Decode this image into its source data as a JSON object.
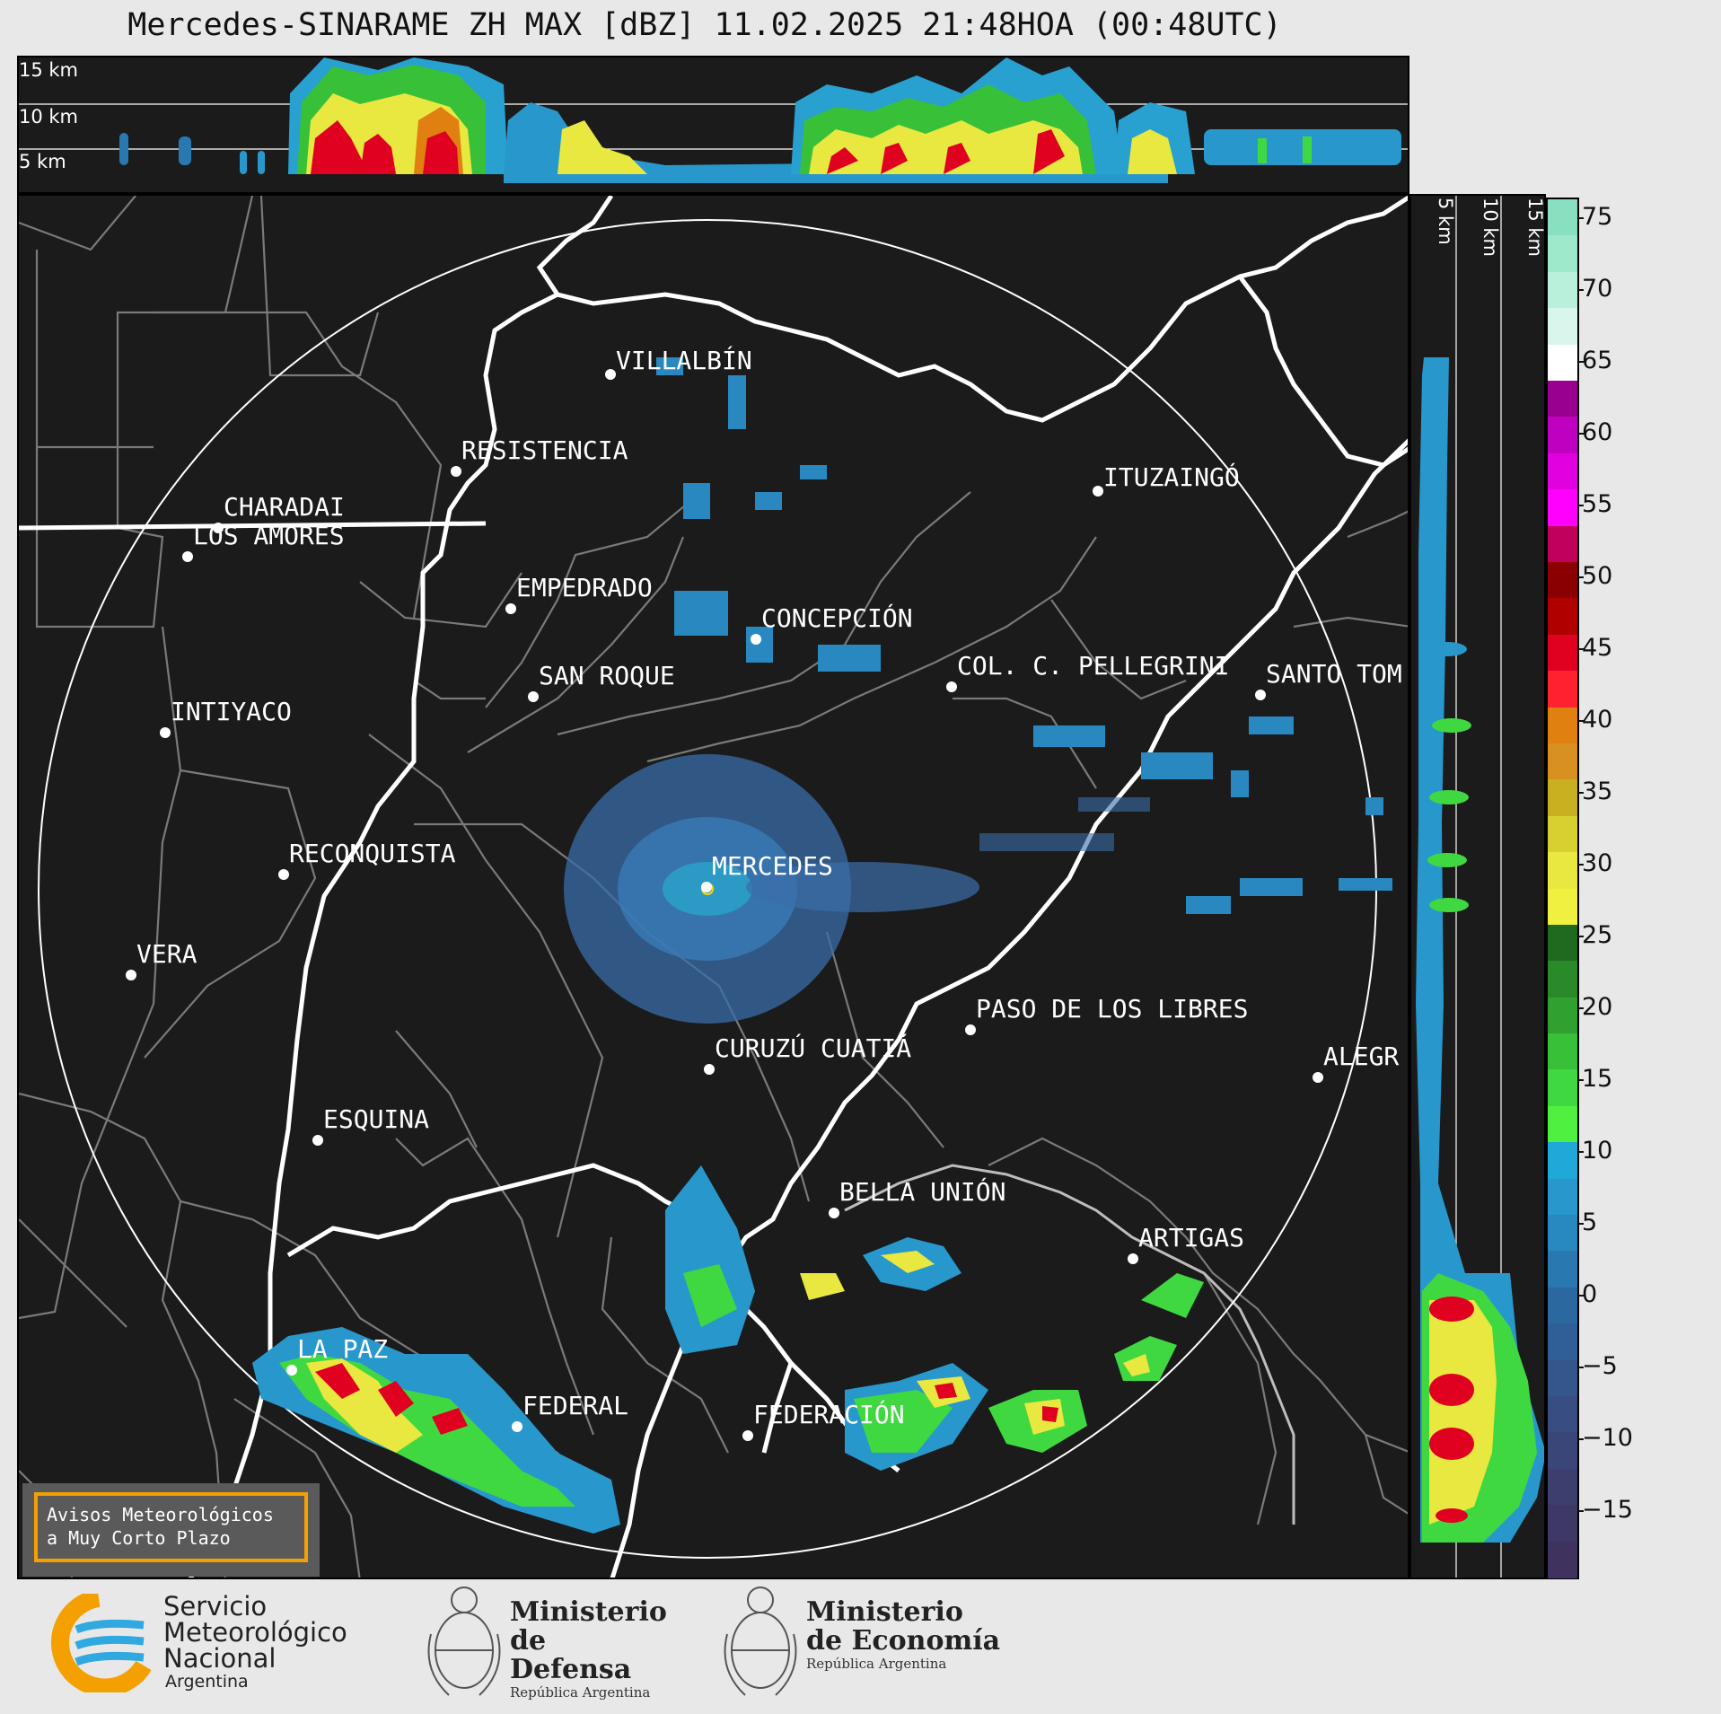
{
  "title": "Mercedes-SINARAME ZH MAX [dBZ] 11.02.2025 21:48HOA (00:48UTC)",
  "top_panel": {
    "height_labels": [
      "15 km",
      "10 km",
      "5 km"
    ]
  },
  "side_panel": {
    "height_labels": [
      "5 km",
      "10 km",
      "15 km"
    ]
  },
  "colorbar": {
    "ticks": [
      "75",
      "70",
      "65",
      "60",
      "55",
      "50",
      "45",
      "40",
      "35",
      "30",
      "25",
      "20",
      "15",
      "10",
      "5",
      "0",
      "−5",
      "−10",
      "−15"
    ],
    "colors": [
      "#88e0c0",
      "#9ee8cc",
      "#b8f0dc",
      "#d8f6ec",
      "#ffffff",
      "#9a0090",
      "#c000c0",
      "#e000e0",
      "#ff00ff",
      "#c0005a",
      "#8a0000",
      "#b00000",
      "#e00020",
      "#ff2030",
      "#e08010",
      "#d89020",
      "#c8b020",
      "#d8d030",
      "#e8e840",
      "#f0f040",
      "#1f6a1f",
      "#2a8a2a",
      "#30a030",
      "#38c038",
      "#40d840",
      "#50f040",
      "#20a8d8",
      "#2898cc",
      "#2888c0",
      "#2a78b0",
      "#2c68a0",
      "#305e96",
      "#34568c",
      "#384e82",
      "#3a4678",
      "#3c3e6e",
      "#3e3866",
      "#40325e"
    ]
  },
  "cities": [
    {
      "name": "VILLALBÍN"
    },
    {
      "name": "RESISTENCIA"
    },
    {
      "name": "CHARADAI"
    },
    {
      "name": "ITUZAINGÓ"
    },
    {
      "name": "EMPEDRADO"
    },
    {
      "name": "LOS AMORES"
    },
    {
      "name": "CONCEPCIÓN"
    },
    {
      "name": "SAN ROQUE"
    },
    {
      "name": "COL. C. PELLEGRINI"
    },
    {
      "name": "SANTO TOM"
    },
    {
      "name": "INTIYACO"
    },
    {
      "name": "MERCEDES"
    },
    {
      "name": "RECONQUISTA"
    },
    {
      "name": "VERA"
    },
    {
      "name": "PASO DE LOS LIBRES"
    },
    {
      "name": "CURUZÚ CUATIÁ"
    },
    {
      "name": "ALEGR"
    },
    {
      "name": "ESQUINA"
    },
    {
      "name": "BELLA UNIÓN"
    },
    {
      "name": "ARTIGAS"
    },
    {
      "name": "LA PAZ"
    },
    {
      "name": "FEDERAL"
    },
    {
      "name": "FEDERACIÓN"
    }
  ],
  "warning_box": {
    "line1": "Avisos Meteorológicos",
    "line2": "a Muy Corto Plazo"
  },
  "footer": {
    "smn": {
      "line1": "Servicio",
      "line2": "Meteorológico",
      "line3": "Nacional",
      "line4": "Argentina"
    },
    "defensa": {
      "line1": "Ministerio",
      "line2": "de Defensa",
      "sub": "República Argentina"
    },
    "economia": {
      "line1": "Ministerio",
      "line2": "de Economía",
      "sub": "República Argentina"
    }
  }
}
